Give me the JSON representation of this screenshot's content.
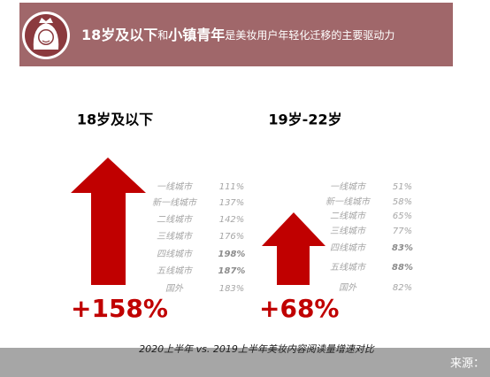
{
  "header": {
    "title_parts": [
      "18岁及以下",
      "和",
      "小镇青年",
      "是美妆用户年轻化迁移的主要驱动力"
    ]
  },
  "panels": [
    {
      "heading": "18岁及以下",
      "growth": "+158%",
      "rows": [
        [
          "一线城市",
          "111%"
        ],
        [
          "新一线城市",
          "137%"
        ],
        [
          "二线城市",
          "142%"
        ],
        [
          "三线城市",
          "176%"
        ],
        [
          "四线城市",
          "198%"
        ],
        [
          "五线城市",
          "187%"
        ],
        [
          "国外",
          "183%"
        ]
      ]
    },
    {
      "heading": "19岁-22岁",
      "growth": "+68%",
      "rows": [
        [
          "一线城市",
          "51%"
        ],
        [
          "新一线城市",
          "58%"
        ],
        [
          "二线城市",
          "65%"
        ],
        [
          "三线城市",
          "77%"
        ],
        [
          "四线城市",
          "83%"
        ],
        [
          "五线城市",
          "88%"
        ],
        [
          "国外",
          "82%"
        ]
      ]
    }
  ],
  "caption": "2020上半年 vs. 2019上半年美妆内容阅读量增速对比",
  "footer": {
    "source": "来源："
  }
}
